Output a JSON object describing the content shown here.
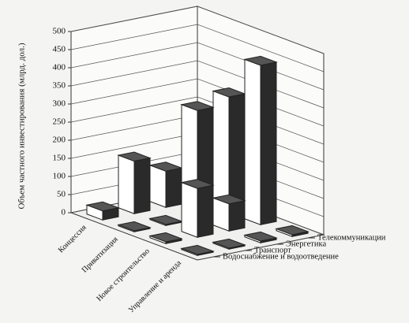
{
  "chart_data": {
    "type": "bar3d",
    "y_label": "Объем частного инвестирования (млрд. дол.)",
    "categories": [
      "Концессия",
      "Приватизация",
      "Новое строительство",
      "Управление и аренда"
    ],
    "series": [
      {
        "name": "Водоснабжение и водоотведение",
        "color": "#ffffff",
        "values": [
          25,
          3,
          5,
          3
        ]
      },
      {
        "name": "Транспорт",
        "color": "#ffffff",
        "values": [
          145,
          3,
          135,
          3
        ]
      },
      {
        "name": "Энергетика",
        "color": "#ffffff",
        "values": [
          100,
          300,
          75,
          5
        ]
      },
      {
        "name": "Телекоммуникации",
        "color": "#ffffff",
        "values": [
          5,
          320,
          440,
          5
        ]
      }
    ],
    "ylim": [
      0,
      500
    ],
    "yticks": [
      0,
      50,
      100,
      150,
      200,
      250,
      300,
      350,
      400,
      450,
      500
    ],
    "grid": true
  }
}
